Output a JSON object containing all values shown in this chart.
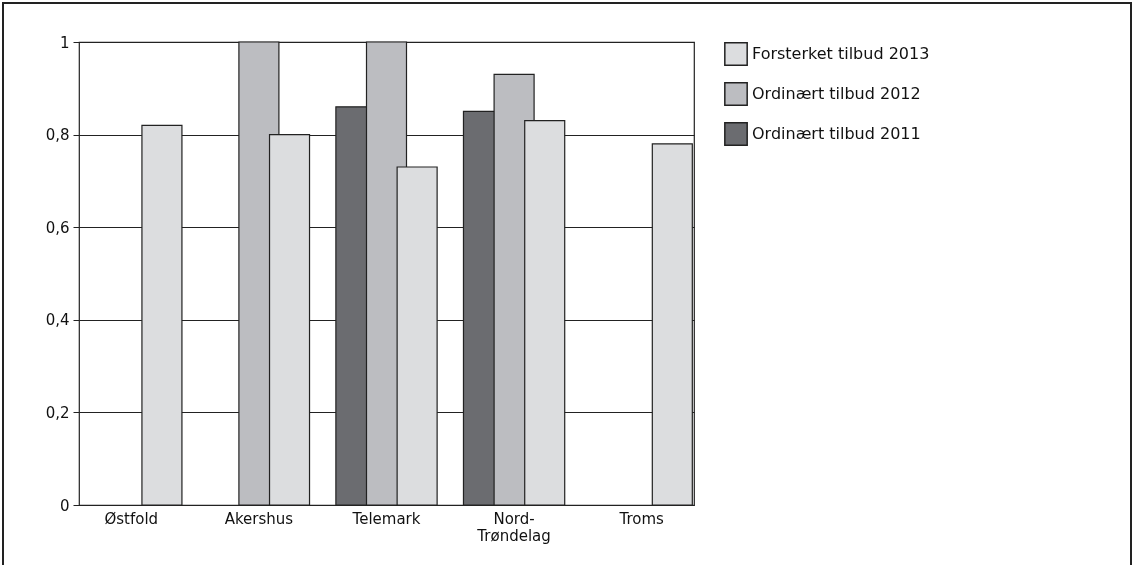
{
  "chart_data": {
    "type": "bar",
    "categories": [
      "Østfold",
      "Akershus",
      "Telemark",
      "Nord-\nTrøndelag",
      "Troms"
    ],
    "series": [
      {
        "name": "Ordinært tilbud 2011",
        "color": "#6b6c70",
        "values": [
          null,
          null,
          0.86,
          0.85,
          null
        ]
      },
      {
        "name": "Ordinært tilbud 2012",
        "color": "#bcbdc1",
        "values": [
          null,
          1,
          1,
          0.93,
          null
        ]
      },
      {
        "name": "Forsterket tilbud 2013",
        "color": "#dcdddf",
        "values": [
          0.82,
          0.8,
          0.73,
          0.83,
          0.78
        ]
      }
    ],
    "ylim": [
      0,
      1
    ],
    "yticks": [
      0,
      {
        "value": 0.2,
        "label": "0,2"
      },
      {
        "value": 0.4,
        "label": "0,4"
      },
      {
        "value": 0.6,
        "label": "0,6"
      },
      {
        "value": 0.8,
        "label": "0,8"
      },
      1
    ],
    "grid": "y",
    "legend": "top right"
  }
}
